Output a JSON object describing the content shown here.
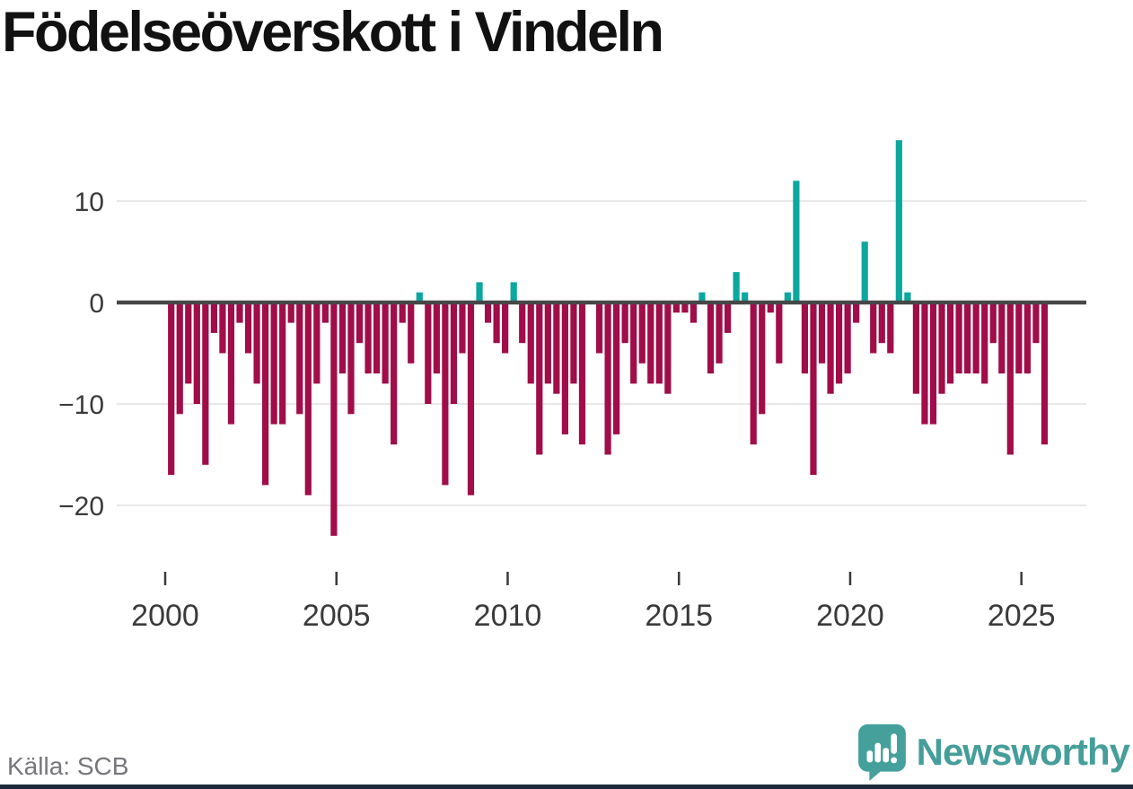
{
  "header": {
    "title": "Födelseöverskott i Vindeln"
  },
  "footer": {
    "source": "Källa: SCB",
    "brand": "Newsworthy",
    "logo_icon": "bar-chart-exclamation-speech-bubble"
  },
  "colors": {
    "positive_bar": "#0ba7a0",
    "negative_bar": "#a00d49",
    "zero_line": "#474747",
    "gridline": "#e8e8e8",
    "tick_text": "#3a3a3a",
    "source_text": "#76777b",
    "logo_teal": "#45a09b",
    "footer_bar": "#1e2a3a"
  },
  "chart_data": {
    "type": "bar",
    "title": "Födelseöverskott i Vindeln",
    "source": "Källa: SCB",
    "freq": "quarterly",
    "start": "2000-Q1",
    "end": "2025-Q3",
    "values": [
      -17,
      -11,
      -8,
      -10,
      -16,
      -3,
      -5,
      -12,
      -2,
      -5,
      -8,
      -18,
      -12,
      -12,
      -2,
      -11,
      -19,
      -8,
      -2,
      -23,
      -7,
      -11,
      -4,
      -7,
      -7,
      -8,
      -14,
      -2,
      -6,
      1,
      -10,
      -7,
      -18,
      -10,
      -5,
      -19,
      2,
      -2,
      -4,
      -5,
      2,
      -4,
      -8,
      -15,
      -8,
      -9,
      -13,
      -8,
      -14,
      0,
      -5,
      -15,
      -13,
      -4,
      -8,
      -6,
      -8,
      -8,
      -9,
      -1,
      -1,
      -2,
      1,
      -7,
      -6,
      -3,
      3,
      1,
      -14,
      -11,
      -1,
      -6,
      1,
      12,
      -7,
      -17,
      -6,
      -9,
      -8,
      -7,
      -2,
      6,
      -5,
      -4,
      -5,
      16,
      1,
      -9,
      -12,
      -12,
      -9,
      -8,
      -7,
      -7,
      -7,
      -8,
      -4,
      -7,
      -15,
      -7,
      -7,
      -4,
      -14
    ],
    "y_ticks": [
      10,
      0,
      -10,
      -20
    ],
    "y_tick_labels": [
      "10",
      "0",
      "−10",
      "−20"
    ],
    "x_ticks": [
      2000,
      2005,
      2010,
      2015,
      2020,
      2025
    ],
    "ylim": [
      -24,
      17
    ],
    "grid": true,
    "legend": false
  }
}
